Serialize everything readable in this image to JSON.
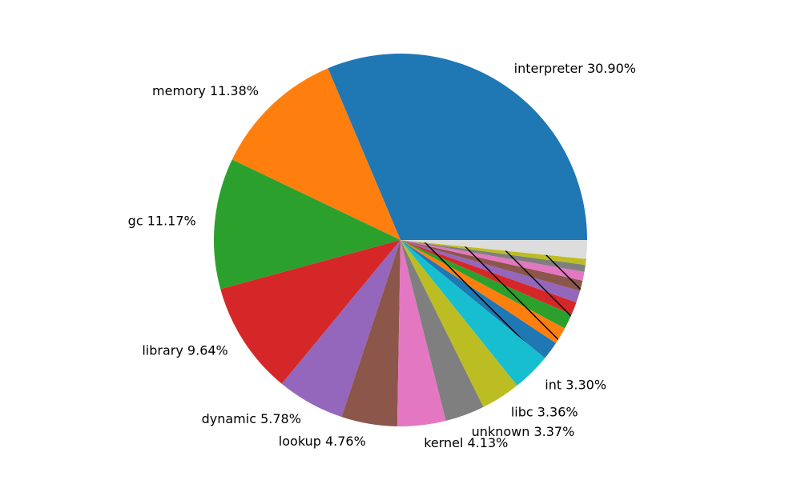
{
  "chart_data": {
    "type": "pie",
    "start_angle_deg": 0,
    "direction": "counterclockwise",
    "slices": [
      {
        "label": "interpreter 30.90%",
        "value": 30.9,
        "color": "#1f77b4"
      },
      {
        "label": "memory 11.38%",
        "value": 11.38,
        "color": "#ff7f0e"
      },
      {
        "label": "gc 11.17%",
        "value": 11.17,
        "color": "#2ca02c"
      },
      {
        "label": "library 9.64%",
        "value": 9.64,
        "color": "#d62728"
      },
      {
        "label": "dynamic 5.78%",
        "value": 5.78,
        "color": "#9467bd"
      },
      {
        "label": "lookup 4.76%",
        "value": 4.76,
        "color": "#8c564b"
      },
      {
        "label": "kernel 4.13%",
        "value": 4.13,
        "color": "#e377c2"
      },
      {
        "label": "unknown 3.37%",
        "value": 3.37,
        "color": "#7f7f7f"
      },
      {
        "label": "libc 3.36%",
        "value": 3.36,
        "color": "#bcbd22"
      },
      {
        "label": "int 3.30%",
        "value": 3.3,
        "color": "#17becf"
      },
      {
        "label": "",
        "value": 1.55,
        "color": "#1f77b4",
        "hatch": true
      },
      {
        "label": "",
        "value": 1.45,
        "color": "#ff7f0e",
        "hatch": true
      },
      {
        "label": "",
        "value": 1.3,
        "color": "#2ca02c",
        "hatch": true
      },
      {
        "label": "",
        "value": 1.1,
        "color": "#d62728",
        "hatch": true
      },
      {
        "label": "",
        "value": 1.0,
        "color": "#9467bd",
        "hatch": true
      },
      {
        "label": "",
        "value": 0.9,
        "color": "#8c564b",
        "hatch": true
      },
      {
        "label": "",
        "value": 0.75,
        "color": "#e377c2",
        "hatch": true
      },
      {
        "label": "",
        "value": 0.6,
        "color": "#7f7f7f",
        "hatch": true
      },
      {
        "label": "",
        "value": 0.5,
        "color": "#bcbd22",
        "hatch": true
      },
      {
        "label": "",
        "value": 1.6,
        "color": "#dddddd"
      }
    ]
  }
}
